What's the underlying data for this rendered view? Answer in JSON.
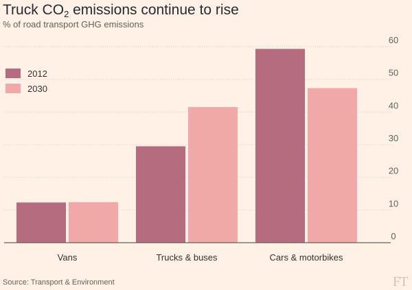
{
  "header": {
    "title_main": "Truck CO",
    "title_sub": "2",
    "title_rest": " emissions continue to rise",
    "subtitle": "% of road transport GHG emissions"
  },
  "footer": {
    "source": "Source: Transport & Environment",
    "logo_text": "FT"
  },
  "colors": {
    "background": "#fff1e5",
    "series_2012": "#b56c7e",
    "series_2030": "#f0a9a6",
    "gridline": "#d9cfc4",
    "baseline": "#66605c",
    "text": "#33302e",
    "muted_text": "#66605c"
  },
  "chart_data": {
    "type": "bar",
    "title": "Truck CO2 emissions continue to rise",
    "subtitle": "% of road transport GHG emissions",
    "categories": [
      "Vans",
      "Trucks & buses",
      "Cars & motorbikes"
    ],
    "series": [
      {
        "name": "2012",
        "values": [
          12.3,
          29.5,
          59.3
        ],
        "color": "#b56c7e"
      },
      {
        "name": "2030",
        "values": [
          12.4,
          41.5,
          47.3
        ],
        "color": "#f0a9a6"
      }
    ],
    "ylim": [
      0,
      60
    ],
    "yticks": [
      0,
      10,
      20,
      30,
      40,
      50,
      60
    ],
    "ytick_labels": [
      "0",
      "10",
      "20",
      "30",
      "40",
      "50",
      "60"
    ],
    "y_axis_side": "right",
    "grid": true,
    "legend_position": "top-left"
  }
}
